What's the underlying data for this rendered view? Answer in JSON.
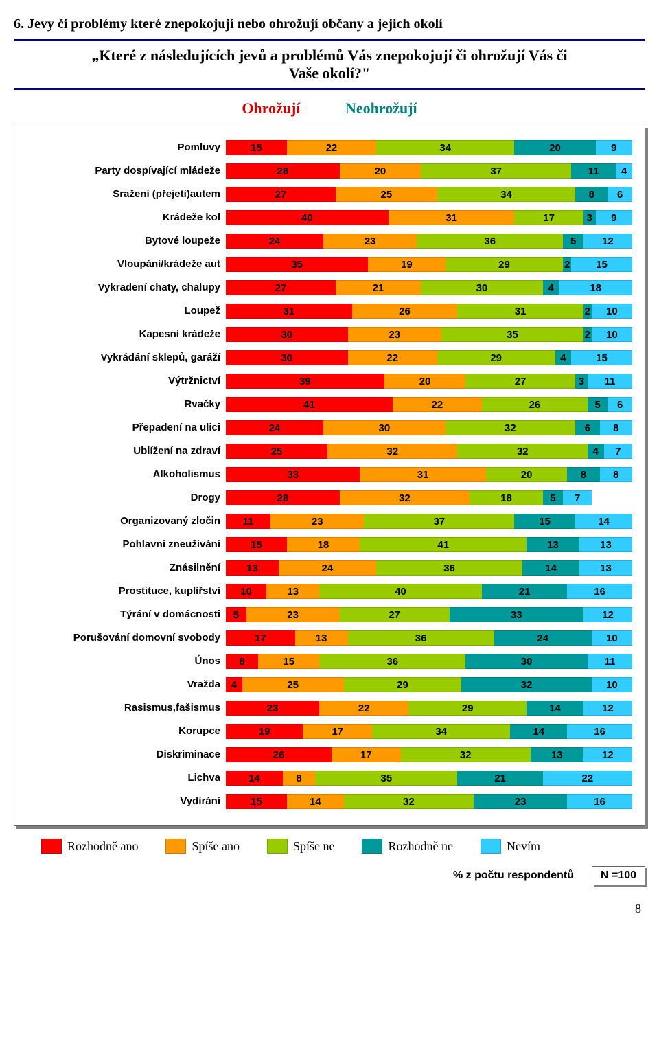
{
  "section_title": "6. Jevy či problémy které znepokojují nebo ohrožují občany a jejich okolí",
  "question_line1": "„Které z následujících jevů a problémů Vás znepokojují či ohrožují Vás či",
  "question_line2": "Vaše okolí?\"",
  "header": {
    "threat": "Ohrožují",
    "nothreat": "Neohrožují"
  },
  "colors": {
    "c0": "#ff0000",
    "c1": "#ff9900",
    "c2": "#99cc00",
    "c3": "#009999",
    "c4": "#33ccff"
  },
  "legend": [
    {
      "label": "Rozhodně ano",
      "color": "#ff0000"
    },
    {
      "label": "Spíše ano",
      "color": "#ff9900"
    },
    {
      "label": "Spíše ne",
      "color": "#99cc00"
    },
    {
      "label": "Rozhodně ne",
      "color": "#009999"
    },
    {
      "label": "Nevím",
      "color": "#33ccff"
    }
  ],
  "chart": {
    "type": "stacked-bar-horizontal",
    "max": 100,
    "label_fontsize": 15,
    "value_fontsize": 15,
    "rows": [
      {
        "label": "Pomluvy",
        "v": [
          15,
          22,
          34,
          20,
          9
        ]
      },
      {
        "label": "Party dospívající mládeže",
        "v": [
          28,
          20,
          37,
          11,
          4
        ]
      },
      {
        "label": "Sražení (přejetí)autem",
        "v": [
          27,
          25,
          34,
          8,
          6
        ]
      },
      {
        "label": "Krádeže kol",
        "v": [
          40,
          31,
          17,
          3,
          9
        ]
      },
      {
        "label": "Bytové loupeže",
        "v": [
          24,
          23,
          36,
          5,
          12
        ]
      },
      {
        "label": "Vloupání/krádeže aut",
        "v": [
          35,
          19,
          29,
          2,
          15
        ]
      },
      {
        "label": "Vykradení chaty, chalupy",
        "v": [
          27,
          21,
          30,
          4,
          18
        ]
      },
      {
        "label": "Loupež",
        "v": [
          31,
          26,
          31,
          2,
          10
        ]
      },
      {
        "label": "Kapesní krádeže",
        "v": [
          30,
          23,
          35,
          2,
          10
        ]
      },
      {
        "label": "Vykrádání sklepů, garáží",
        "v": [
          30,
          22,
          29,
          4,
          15
        ]
      },
      {
        "label": "Výtržnictví",
        "v": [
          39,
          20,
          27,
          3,
          11
        ]
      },
      {
        "label": "Rvačky",
        "v": [
          41,
          22,
          26,
          5,
          6
        ]
      },
      {
        "label": "Přepadení na ulici",
        "v": [
          24,
          30,
          32,
          6,
          8
        ]
      },
      {
        "label": "Ublížení na zdraví",
        "v": [
          25,
          32,
          32,
          4,
          7
        ]
      },
      {
        "label": "Alkoholismus",
        "v": [
          33,
          31,
          20,
          8,
          8
        ]
      },
      {
        "label": "Drogy",
        "v": [
          28,
          32,
          18,
          5,
          7
        ]
      },
      {
        "label": "Organizovaný zločin",
        "v": [
          11,
          23,
          37,
          15,
          14
        ]
      },
      {
        "label": "Pohlavní zneužívání",
        "v": [
          15,
          18,
          41,
          13,
          13
        ]
      },
      {
        "label": "Znásilnění",
        "v": [
          13,
          24,
          36,
          14,
          13
        ]
      },
      {
        "label": "Prostituce, kuplířství",
        "v": [
          10,
          13,
          40,
          21,
          16
        ]
      },
      {
        "label": "Týrání v domácnosti",
        "v": [
          5,
          23,
          27,
          33,
          12
        ]
      },
      {
        "label": "Porušování domovní svobody",
        "v": [
          17,
          13,
          36,
          24,
          10
        ]
      },
      {
        "label": "Únos",
        "v": [
          8,
          15,
          36,
          30,
          11
        ]
      },
      {
        "label": "Vražda",
        "v": [
          4,
          25,
          29,
          32,
          10
        ]
      },
      {
        "label": "Rasismus,fašismus",
        "v": [
          23,
          22,
          29,
          14,
          12
        ]
      },
      {
        "label": "Korupce",
        "v": [
          19,
          17,
          34,
          14,
          16
        ]
      },
      {
        "label": "Diskriminace",
        "v": [
          26,
          17,
          32,
          13,
          12
        ]
      },
      {
        "label": "Lichva",
        "v": [
          14,
          8,
          35,
          21,
          22
        ]
      },
      {
        "label": "Vydírání",
        "v": [
          15,
          14,
          32,
          23,
          16
        ]
      }
    ]
  },
  "footer": {
    "pct_label": "% z počtu respondentů",
    "n_label": "N =100"
  },
  "page_number": "8"
}
